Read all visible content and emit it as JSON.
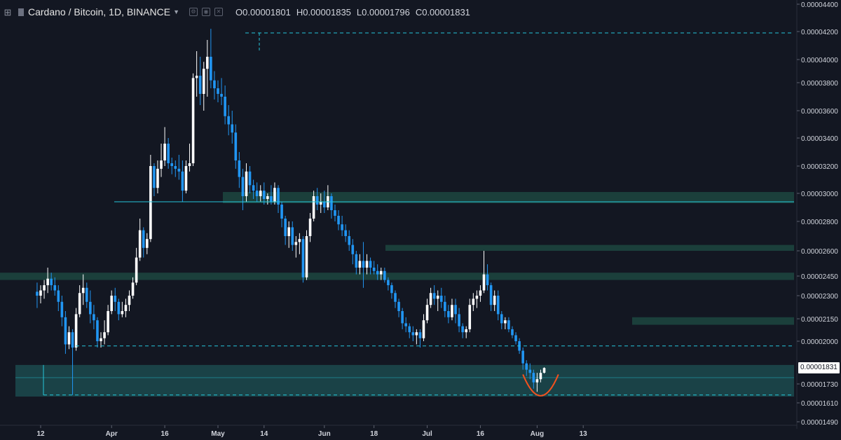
{
  "header": {
    "symbol": "Cardano / Bitcoin, 1D, BINANCE",
    "ohlc": [
      {
        "label": "O",
        "value": "0.00001801"
      },
      {
        "label": "H",
        "value": "0.00001835"
      },
      {
        "label": "L",
        "value": "0.00001796"
      },
      {
        "label": "C",
        "value": "0.00001831"
      }
    ]
  },
  "colors": {
    "background": "#131722",
    "up": "#ffffff",
    "down": "#2196f3",
    "zone": "#1e4a42",
    "zone_line": "#26c6da",
    "curve": "#f4511e"
  },
  "last_price_label": "0.00001831",
  "chart_data": {
    "type": "candlestick",
    "title": "Cardano / Bitcoin, 1D, BINANCE",
    "x_ticks": [
      "12",
      "Apr",
      "16",
      "May",
      "14",
      "Jun",
      "18",
      "Jul",
      "16",
      "Aug",
      "13"
    ],
    "x_tick_days": [
      0,
      20,
      35,
      50,
      63,
      80,
      94,
      109,
      124,
      140,
      153
    ],
    "y_ticks": [
      "0.00004400",
      "0.00004200",
      "0.00004000",
      "0.00003800",
      "0.00003600",
      "0.00003400",
      "0.00003200",
      "0.00003000",
      "0.00002800",
      "0.00002600",
      "0.00002450",
      "0.00002300",
      "0.00002150",
      "0.00002000",
      "0.00001730",
      "0.00001610",
      "0.00001490"
    ],
    "y_tick_values": [
      4.4,
      4.2,
      4.0,
      3.8,
      3.6,
      3.4,
      3.2,
      3.0,
      2.8,
      2.6,
      2.45,
      2.3,
      2.15,
      2.0,
      1.73,
      1.61,
      1.49
    ],
    "y_units_note": "values x 1e-5 BTC",
    "zones": [
      {
        "from": 2.93,
        "to": 3.01
      },
      {
        "from": 2.6,
        "to": 2.64
      },
      {
        "from": 2.42,
        "to": 2.47
      },
      {
        "from": 2.11,
        "to": 2.16
      },
      {
        "from": 1.65,
        "to": 1.85
      }
    ],
    "hlines": [
      {
        "value": 2.94,
        "style": "solid"
      },
      {
        "value": 4.19,
        "style": "dashed"
      },
      {
        "value": 1.97,
        "style": "dashed"
      },
      {
        "value": 1.66,
        "style": "dashed"
      }
    ],
    "candles": [
      {
        "d": -1,
        "o": 2.33,
        "h": 2.4,
        "l": 2.22,
        "c": 2.3
      },
      {
        "d": 0,
        "o": 2.3,
        "h": 2.38,
        "l": 2.25,
        "c": 2.34
      },
      {
        "d": 1,
        "o": 2.34,
        "h": 2.42,
        "l": 2.28,
        "c": 2.38
      },
      {
        "d": 2,
        "o": 2.38,
        "h": 2.5,
        "l": 2.32,
        "c": 2.43
      },
      {
        "d": 3,
        "o": 2.43,
        "h": 2.47,
        "l": 2.34,
        "c": 2.38
      },
      {
        "d": 4,
        "o": 2.38,
        "h": 2.44,
        "l": 2.3,
        "c": 2.34
      },
      {
        "d": 5,
        "o": 2.34,
        "h": 2.38,
        "l": 2.2,
        "c": 2.26
      },
      {
        "d": 6,
        "o": 2.26,
        "h": 2.3,
        "l": 2.1,
        "c": 2.16
      },
      {
        "d": 7,
        "o": 2.16,
        "h": 2.2,
        "l": 1.92,
        "c": 1.98
      },
      {
        "d": 8,
        "o": 1.98,
        "h": 2.1,
        "l": 1.95,
        "c": 2.06
      },
      {
        "d": 9,
        "o": 2.06,
        "h": 2.08,
        "l": 1.66,
        "c": 1.96
      },
      {
        "d": 10,
        "o": 1.96,
        "h": 2.22,
        "l": 1.94,
        "c": 2.18
      },
      {
        "d": 11,
        "o": 2.18,
        "h": 2.38,
        "l": 2.16,
        "c": 2.32
      },
      {
        "d": 12,
        "o": 2.32,
        "h": 2.46,
        "l": 2.24,
        "c": 2.36
      },
      {
        "d": 13,
        "o": 2.36,
        "h": 2.4,
        "l": 2.22,
        "c": 2.26
      },
      {
        "d": 14,
        "o": 2.26,
        "h": 2.34,
        "l": 2.12,
        "c": 2.18
      },
      {
        "d": 15,
        "o": 2.18,
        "h": 2.24,
        "l": 2.08,
        "c": 2.14
      },
      {
        "d": 16,
        "o": 2.14,
        "h": 2.16,
        "l": 1.96,
        "c": 2.0
      },
      {
        "d": 17,
        "o": 2.0,
        "h": 2.06,
        "l": 1.96,
        "c": 2.02
      },
      {
        "d": 18,
        "o": 2.02,
        "h": 2.14,
        "l": 1.98,
        "c": 2.06
      },
      {
        "d": 19,
        "o": 2.06,
        "h": 2.24,
        "l": 2.04,
        "c": 2.2
      },
      {
        "d": 20,
        "o": 2.2,
        "h": 2.34,
        "l": 2.18,
        "c": 2.3
      },
      {
        "d": 21,
        "o": 2.3,
        "h": 2.36,
        "l": 2.2,
        "c": 2.26
      },
      {
        "d": 22,
        "o": 2.26,
        "h": 2.28,
        "l": 2.14,
        "c": 2.18
      },
      {
        "d": 23,
        "o": 2.18,
        "h": 2.26,
        "l": 2.16,
        "c": 2.2
      },
      {
        "d": 24,
        "o": 2.2,
        "h": 2.28,
        "l": 2.16,
        "c": 2.24
      },
      {
        "d": 25,
        "o": 2.24,
        "h": 2.34,
        "l": 2.2,
        "c": 2.3
      },
      {
        "d": 26,
        "o": 2.3,
        "h": 2.44,
        "l": 2.28,
        "c": 2.4
      },
      {
        "d": 27,
        "o": 2.4,
        "h": 2.62,
        "l": 2.38,
        "c": 2.56
      },
      {
        "d": 28,
        "o": 2.56,
        "h": 2.82,
        "l": 2.54,
        "c": 2.74
      },
      {
        "d": 29,
        "o": 2.74,
        "h": 2.76,
        "l": 2.56,
        "c": 2.62
      },
      {
        "d": 30,
        "o": 2.62,
        "h": 2.72,
        "l": 2.58,
        "c": 2.68
      },
      {
        "d": 31,
        "o": 2.68,
        "h": 3.28,
        "l": 2.66,
        "c": 3.2
      },
      {
        "d": 32,
        "o": 3.2,
        "h": 3.22,
        "l": 2.98,
        "c": 3.04
      },
      {
        "d": 33,
        "o": 3.04,
        "h": 3.24,
        "l": 3.0,
        "c": 3.18
      },
      {
        "d": 34,
        "o": 3.18,
        "h": 3.36,
        "l": 3.12,
        "c": 3.24
      },
      {
        "d": 35,
        "o": 3.24,
        "h": 3.48,
        "l": 3.2,
        "c": 3.36
      },
      {
        "d": 36,
        "o": 3.36,
        "h": 3.4,
        "l": 3.18,
        "c": 3.22
      },
      {
        "d": 37,
        "o": 3.22,
        "h": 3.26,
        "l": 3.14,
        "c": 3.2
      },
      {
        "d": 38,
        "o": 3.2,
        "h": 3.24,
        "l": 3.12,
        "c": 3.18
      },
      {
        "d": 39,
        "o": 3.18,
        "h": 3.28,
        "l": 3.1,
        "c": 3.16
      },
      {
        "d": 40,
        "o": 3.16,
        "h": 3.24,
        "l": 2.94,
        "c": 3.02
      },
      {
        "d": 41,
        "o": 3.02,
        "h": 3.24,
        "l": 3.0,
        "c": 3.2
      },
      {
        "d": 42,
        "o": 3.2,
        "h": 3.36,
        "l": 3.16,
        "c": 3.22
      },
      {
        "d": 43,
        "o": 3.22,
        "h": 3.88,
        "l": 3.2,
        "c": 3.84
      },
      {
        "d": 44,
        "o": 3.84,
        "h": 4.06,
        "l": 3.7,
        "c": 3.86
      },
      {
        "d": 45,
        "o": 3.86,
        "h": 4.02,
        "l": 3.64,
        "c": 3.72
      },
      {
        "d": 46,
        "o": 3.72,
        "h": 3.98,
        "l": 3.6,
        "c": 3.92
      },
      {
        "d": 47,
        "o": 3.92,
        "h": 4.14,
        "l": 3.7,
        "c": 4.02
      },
      {
        "d": 48,
        "o": 4.02,
        "h": 4.22,
        "l": 3.76,
        "c": 3.82
      },
      {
        "d": 49,
        "o": 3.82,
        "h": 3.9,
        "l": 3.68,
        "c": 3.76
      },
      {
        "d": 50,
        "o": 3.76,
        "h": 3.82,
        "l": 3.66,
        "c": 3.72
      },
      {
        "d": 51,
        "o": 3.72,
        "h": 3.84,
        "l": 3.64,
        "c": 3.7
      },
      {
        "d": 52,
        "o": 3.7,
        "h": 3.78,
        "l": 3.5,
        "c": 3.56
      },
      {
        "d": 53,
        "o": 3.56,
        "h": 3.64,
        "l": 3.42,
        "c": 3.5
      },
      {
        "d": 54,
        "o": 3.5,
        "h": 3.6,
        "l": 3.36,
        "c": 3.44
      },
      {
        "d": 55,
        "o": 3.44,
        "h": 3.5,
        "l": 3.18,
        "c": 3.24
      },
      {
        "d": 56,
        "o": 3.24,
        "h": 3.3,
        "l": 3.04,
        "c": 3.12
      },
      {
        "d": 57,
        "o": 3.12,
        "h": 3.18,
        "l": 2.88,
        "c": 2.98
      },
      {
        "d": 58,
        "o": 2.98,
        "h": 3.22,
        "l": 2.94,
        "c": 3.16
      },
      {
        "d": 59,
        "o": 3.16,
        "h": 3.2,
        "l": 3.0,
        "c": 3.06
      },
      {
        "d": 60,
        "o": 3.06,
        "h": 3.1,
        "l": 2.96,
        "c": 3.02
      },
      {
        "d": 61,
        "o": 3.02,
        "h": 3.08,
        "l": 2.94,
        "c": 2.98
      },
      {
        "d": 62,
        "o": 2.98,
        "h": 3.06,
        "l": 2.94,
        "c": 3.02
      },
      {
        "d": 63,
        "o": 3.02,
        "h": 3.08,
        "l": 2.92,
        "c": 2.96
      },
      {
        "d": 64,
        "o": 2.96,
        "h": 3.0,
        "l": 2.92,
        "c": 2.98
      },
      {
        "d": 65,
        "o": 2.98,
        "h": 3.06,
        "l": 2.92,
        "c": 2.94
      },
      {
        "d": 66,
        "o": 2.94,
        "h": 3.08,
        "l": 2.92,
        "c": 3.04
      },
      {
        "d": 67,
        "o": 3.04,
        "h": 3.06,
        "l": 2.86,
        "c": 2.92
      },
      {
        "d": 68,
        "o": 2.92,
        "h": 2.94,
        "l": 2.76,
        "c": 2.82
      },
      {
        "d": 69,
        "o": 2.82,
        "h": 2.84,
        "l": 2.64,
        "c": 2.7
      },
      {
        "d": 70,
        "o": 2.7,
        "h": 2.8,
        "l": 2.62,
        "c": 2.76
      },
      {
        "d": 71,
        "o": 2.76,
        "h": 2.8,
        "l": 2.6,
        "c": 2.64
      },
      {
        "d": 72,
        "o": 2.64,
        "h": 2.7,
        "l": 2.56,
        "c": 2.66
      },
      {
        "d": 73,
        "o": 2.66,
        "h": 2.72,
        "l": 2.58,
        "c": 2.68
      },
      {
        "d": 74,
        "o": 2.68,
        "h": 2.7,
        "l": 2.4,
        "c": 2.44
      },
      {
        "d": 75,
        "o": 2.44,
        "h": 2.74,
        "l": 2.42,
        "c": 2.7
      },
      {
        "d": 76,
        "o": 2.7,
        "h": 2.86,
        "l": 2.66,
        "c": 2.82
      },
      {
        "d": 77,
        "o": 2.82,
        "h": 3.02,
        "l": 2.8,
        "c": 2.98
      },
      {
        "d": 78,
        "o": 2.98,
        "h": 3.04,
        "l": 2.88,
        "c": 2.92
      },
      {
        "d": 79,
        "o": 2.92,
        "h": 3.0,
        "l": 2.86,
        "c": 2.94
      },
      {
        "d": 80,
        "o": 2.94,
        "h": 3.02,
        "l": 2.86,
        "c": 2.9
      },
      {
        "d": 81,
        "o": 2.9,
        "h": 3.06,
        "l": 2.88,
        "c": 2.98
      },
      {
        "d": 82,
        "o": 2.98,
        "h": 3.0,
        "l": 2.82,
        "c": 2.88
      },
      {
        "d": 83,
        "o": 2.88,
        "h": 2.92,
        "l": 2.8,
        "c": 2.84
      },
      {
        "d": 84,
        "o": 2.84,
        "h": 2.88,
        "l": 2.74,
        "c": 2.78
      },
      {
        "d": 85,
        "o": 2.78,
        "h": 2.84,
        "l": 2.7,
        "c": 2.74
      },
      {
        "d": 86,
        "o": 2.74,
        "h": 2.78,
        "l": 2.66,
        "c": 2.7
      },
      {
        "d": 87,
        "o": 2.7,
        "h": 2.74,
        "l": 2.6,
        "c": 2.64
      },
      {
        "d": 88,
        "o": 2.64,
        "h": 2.68,
        "l": 2.52,
        "c": 2.58
      },
      {
        "d": 89,
        "o": 2.58,
        "h": 2.6,
        "l": 2.46,
        "c": 2.5
      },
      {
        "d": 90,
        "o": 2.5,
        "h": 2.58,
        "l": 2.46,
        "c": 2.54
      },
      {
        "d": 91,
        "o": 2.54,
        "h": 2.66,
        "l": 2.36,
        "c": 2.5
      },
      {
        "d": 92,
        "o": 2.5,
        "h": 2.58,
        "l": 2.46,
        "c": 2.54
      },
      {
        "d": 93,
        "o": 2.54,
        "h": 2.56,
        "l": 2.46,
        "c": 2.5
      },
      {
        "d": 94,
        "o": 2.5,
        "h": 2.54,
        "l": 2.46,
        "c": 2.48
      },
      {
        "d": 95,
        "o": 2.48,
        "h": 2.52,
        "l": 2.42,
        "c": 2.46
      },
      {
        "d": 96,
        "o": 2.46,
        "h": 2.5,
        "l": 2.42,
        "c": 2.48
      },
      {
        "d": 97,
        "o": 2.48,
        "h": 2.5,
        "l": 2.4,
        "c": 2.42
      },
      {
        "d": 98,
        "o": 2.42,
        "h": 2.44,
        "l": 2.34,
        "c": 2.38
      },
      {
        "d": 99,
        "o": 2.38,
        "h": 2.4,
        "l": 2.28,
        "c": 2.32
      },
      {
        "d": 100,
        "o": 2.32,
        "h": 2.34,
        "l": 2.22,
        "c": 2.26
      },
      {
        "d": 101,
        "o": 2.26,
        "h": 2.28,
        "l": 2.16,
        "c": 2.2
      },
      {
        "d": 102,
        "o": 2.2,
        "h": 2.22,
        "l": 2.08,
        "c": 2.12
      },
      {
        "d": 103,
        "o": 2.12,
        "h": 2.16,
        "l": 2.06,
        "c": 2.1
      },
      {
        "d": 104,
        "o": 2.1,
        "h": 2.12,
        "l": 2.02,
        "c": 2.06
      },
      {
        "d": 105,
        "o": 2.06,
        "h": 2.1,
        "l": 2.0,
        "c": 2.04
      },
      {
        "d": 106,
        "o": 2.04,
        "h": 2.08,
        "l": 1.98,
        "c": 2.06
      },
      {
        "d": 107,
        "o": 2.06,
        "h": 2.08,
        "l": 1.96,
        "c": 2.02
      },
      {
        "d": 108,
        "o": 2.02,
        "h": 2.18,
        "l": 2.0,
        "c": 2.14
      },
      {
        "d": 109,
        "o": 2.14,
        "h": 2.28,
        "l": 2.12,
        "c": 2.24
      },
      {
        "d": 110,
        "o": 2.24,
        "h": 2.36,
        "l": 2.22,
        "c": 2.32
      },
      {
        "d": 111,
        "o": 2.32,
        "h": 2.38,
        "l": 2.24,
        "c": 2.28
      },
      {
        "d": 112,
        "o": 2.28,
        "h": 2.34,
        "l": 2.2,
        "c": 2.3
      },
      {
        "d": 113,
        "o": 2.3,
        "h": 2.36,
        "l": 2.22,
        "c": 2.26
      },
      {
        "d": 114,
        "o": 2.26,
        "h": 2.3,
        "l": 2.16,
        "c": 2.2
      },
      {
        "d": 115,
        "o": 2.2,
        "h": 2.24,
        "l": 2.12,
        "c": 2.16
      },
      {
        "d": 116,
        "o": 2.16,
        "h": 2.28,
        "l": 2.14,
        "c": 2.24
      },
      {
        "d": 117,
        "o": 2.24,
        "h": 2.28,
        "l": 2.12,
        "c": 2.18
      },
      {
        "d": 118,
        "o": 2.18,
        "h": 2.22,
        "l": 2.06,
        "c": 2.1
      },
      {
        "d": 119,
        "o": 2.1,
        "h": 2.12,
        "l": 2.02,
        "c": 2.06
      },
      {
        "d": 120,
        "o": 2.06,
        "h": 2.1,
        "l": 2.02,
        "c": 2.08
      },
      {
        "d": 121,
        "o": 2.08,
        "h": 2.28,
        "l": 2.06,
        "c": 2.24
      },
      {
        "d": 122,
        "o": 2.24,
        "h": 2.32,
        "l": 2.2,
        "c": 2.28
      },
      {
        "d": 123,
        "o": 2.28,
        "h": 2.34,
        "l": 2.22,
        "c": 2.3
      },
      {
        "d": 124,
        "o": 2.3,
        "h": 2.38,
        "l": 2.26,
        "c": 2.34
      },
      {
        "d": 125,
        "o": 2.34,
        "h": 2.6,
        "l": 2.32,
        "c": 2.46
      },
      {
        "d": 126,
        "o": 2.46,
        "h": 2.52,
        "l": 2.34,
        "c": 2.38
      },
      {
        "d": 127,
        "o": 2.38,
        "h": 2.4,
        "l": 2.2,
        "c": 2.24
      },
      {
        "d": 128,
        "o": 2.24,
        "h": 2.34,
        "l": 2.2,
        "c": 2.3
      },
      {
        "d": 129,
        "o": 2.3,
        "h": 2.34,
        "l": 2.14,
        "c": 2.18
      },
      {
        "d": 130,
        "o": 2.18,
        "h": 2.2,
        "l": 2.08,
        "c": 2.12
      },
      {
        "d": 131,
        "o": 2.12,
        "h": 2.16,
        "l": 2.08,
        "c": 2.14
      },
      {
        "d": 132,
        "o": 2.14,
        "h": 2.16,
        "l": 2.06,
        "c": 2.08
      },
      {
        "d": 133,
        "o": 2.08,
        "h": 2.1,
        "l": 2.02,
        "c": 2.04
      },
      {
        "d": 134,
        "o": 2.04,
        "h": 2.06,
        "l": 1.98,
        "c": 2.0
      },
      {
        "d": 135,
        "o": 2.0,
        "h": 2.02,
        "l": 1.92,
        "c": 1.94
      },
      {
        "d": 136,
        "o": 1.94,
        "h": 1.96,
        "l": 1.82,
        "c": 1.86
      },
      {
        "d": 137,
        "o": 1.86,
        "h": 1.88,
        "l": 1.78,
        "c": 1.82
      },
      {
        "d": 138,
        "o": 1.82,
        "h": 1.86,
        "l": 1.76,
        "c": 1.8
      },
      {
        "d": 139,
        "o": 1.8,
        "h": 1.82,
        "l": 1.7,
        "c": 1.74
      },
      {
        "d": 140,
        "o": 1.74,
        "h": 1.8,
        "l": 1.68,
        "c": 1.76
      },
      {
        "d": 141,
        "o": 1.76,
        "h": 1.82,
        "l": 1.74,
        "c": 1.8
      },
      {
        "d": 142,
        "o": 1.801,
        "h": 1.835,
        "l": 1.796,
        "c": 1.831
      }
    ]
  }
}
